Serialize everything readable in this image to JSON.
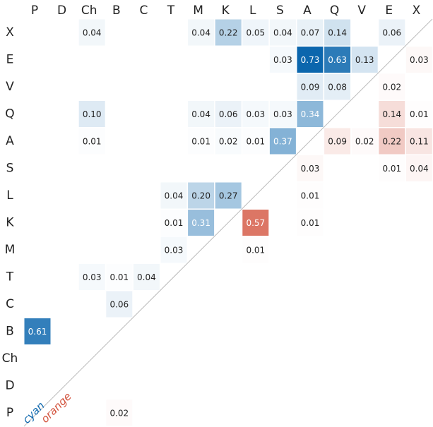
{
  "chart_data": {
    "type": "heatmap",
    "x_categories": [
      "P",
      "D",
      "Ch",
      "B",
      "C",
      "T",
      "M",
      "K",
      "L",
      "S",
      "A",
      "Q",
      "V",
      "E",
      "X"
    ],
    "y_categories": [
      "X",
      "E",
      "V",
      "Q",
      "A",
      "S",
      "L",
      "K",
      "M",
      "T",
      "C",
      "B",
      "Ch",
      "D",
      "P"
    ],
    "series": [
      {
        "name": "cyan",
        "color": "#0b66ad"
      },
      {
        "name": "orange",
        "color": "#d2503a"
      }
    ],
    "values": [
      [
        null,
        null,
        0.04,
        null,
        null,
        null,
        0.04,
        0.22,
        0.05,
        0.04,
        0.07,
        0.14,
        null,
        0.06,
        null
      ],
      [
        null,
        null,
        null,
        null,
        null,
        null,
        null,
        null,
        null,
        0.03,
        0.73,
        0.63,
        0.13,
        null,
        0.03
      ],
      [
        null,
        null,
        null,
        null,
        null,
        null,
        null,
        null,
        null,
        null,
        0.09,
        0.08,
        null,
        0.02,
        null
      ],
      [
        null,
        null,
        0.1,
        null,
        null,
        null,
        0.04,
        0.06,
        0.03,
        0.03,
        0.34,
        null,
        null,
        0.14,
        0.01
      ],
      [
        null,
        null,
        0.01,
        null,
        null,
        null,
        0.01,
        0.02,
        0.01,
        0.37,
        null,
        0.09,
        0.02,
        0.22,
        0.11
      ],
      [
        null,
        null,
        null,
        null,
        null,
        null,
        null,
        null,
        null,
        null,
        0.03,
        null,
        null,
        0.01,
        0.04
      ],
      [
        null,
        null,
        null,
        null,
        null,
        0.04,
        0.2,
        0.27,
        null,
        null,
        0.01,
        null,
        null,
        null,
        null
      ],
      [
        null,
        null,
        null,
        null,
        null,
        0.01,
        0.31,
        null,
        0.57,
        null,
        0.01,
        null,
        null,
        null,
        null
      ],
      [
        null,
        null,
        null,
        null,
        null,
        0.03,
        null,
        null,
        0.01,
        null,
        null,
        null,
        null,
        null,
        null
      ],
      [
        null,
        null,
        0.03,
        0.01,
        0.04,
        null,
        null,
        null,
        null,
        null,
        null,
        null,
        null,
        null,
        null
      ],
      [
        null,
        null,
        null,
        0.06,
        null,
        null,
        null,
        null,
        null,
        null,
        null,
        null,
        null,
        null,
        null
      ],
      [
        0.61,
        null,
        null,
        null,
        null,
        null,
        null,
        null,
        null,
        null,
        null,
        null,
        null,
        null,
        null
      ],
      [
        null,
        null,
        null,
        null,
        null,
        null,
        null,
        null,
        null,
        null,
        null,
        null,
        null,
        null,
        null
      ],
      [
        null,
        null,
        null,
        null,
        null,
        null,
        null,
        null,
        null,
        null,
        null,
        null,
        null,
        null,
        null
      ],
      [
        null,
        null,
        null,
        0.02,
        null,
        null,
        null,
        null,
        null,
        null,
        null,
        null,
        null,
        null,
        null
      ]
    ],
    "value_labels": [
      [
        null,
        null,
        "0.04",
        null,
        null,
        null,
        "0.04",
        "0.22",
        "0.05",
        "0.04",
        "0.07",
        "0.14",
        null,
        "0.06",
        null
      ],
      [
        null,
        null,
        null,
        null,
        null,
        null,
        null,
        null,
        null,
        "0.03",
        "0.73",
        "0.63",
        "0.13",
        null,
        "0.03"
      ],
      [
        null,
        null,
        null,
        null,
        null,
        null,
        null,
        null,
        null,
        null,
        "0.09",
        "0.08",
        null,
        "0.02",
        null
      ],
      [
        null,
        null,
        "0.10",
        null,
        null,
        null,
        "0.04",
        "0.06",
        "0.03",
        "0.03",
        "0.34",
        null,
        null,
        "0.14",
        "0.01"
      ],
      [
        null,
        null,
        "0.01",
        null,
        null,
        null,
        "0.01",
        "0.02",
        "0.01",
        "0.37",
        null,
        "0.09",
        "0.02",
        "0.22",
        "0.11"
      ],
      [
        null,
        null,
        null,
        null,
        null,
        null,
        null,
        null,
        null,
        null,
        "0.03",
        null,
        null,
        "0.01",
        "0.04"
      ],
      [
        null,
        null,
        null,
        null,
        null,
        "0.04",
        "0.20",
        "0.27",
        null,
        null,
        "0.01",
        null,
        null,
        null,
        null
      ],
      [
        null,
        null,
        null,
        null,
        null,
        "0.01",
        "0.31",
        null,
        "0.57",
        null,
        "0.01",
        null,
        null,
        null,
        null
      ],
      [
        null,
        null,
        null,
        null,
        null,
        "0.03",
        null,
        null,
        "0.01",
        null,
        null,
        null,
        null,
        null,
        null
      ],
      [
        null,
        null,
        "0.03",
        "0.01",
        "0.04",
        null,
        null,
        null,
        null,
        null,
        null,
        null,
        null,
        null,
        null
      ],
      [
        null,
        null,
        null,
        "0.06",
        null,
        null,
        null,
        null,
        null,
        null,
        null,
        null,
        null,
        null,
        null
      ],
      [
        "0.61",
        null,
        null,
        null,
        null,
        null,
        null,
        null,
        null,
        null,
        null,
        null,
        null,
        null,
        null
      ],
      [
        null,
        null,
        null,
        null,
        null,
        null,
        null,
        null,
        null,
        null,
        null,
        null,
        null,
        null,
        null
      ],
      [
        null,
        null,
        null,
        null,
        null,
        null,
        null,
        null,
        null,
        null,
        null,
        null,
        null,
        null,
        null
      ],
      [
        null,
        null,
        null,
        "0.02",
        null,
        null,
        null,
        null,
        null,
        null,
        null,
        null,
        null,
        null,
        null
      ]
    ]
  }
}
